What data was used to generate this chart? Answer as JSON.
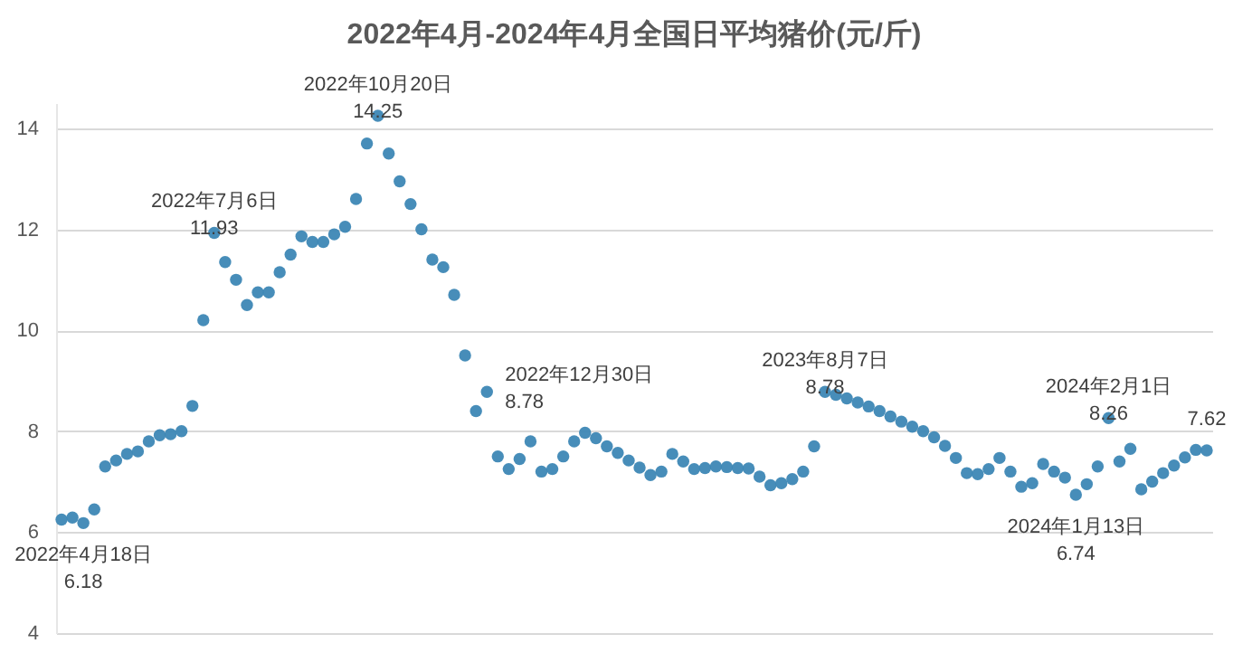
{
  "chart_data": {
    "type": "scatter",
    "title": "2022年4月-2024年4月全国日平均猪价(元/斤)",
    "categories": [
      null,
      null,
      null,
      null,
      null,
      null,
      null,
      null,
      null,
      null,
      null,
      null,
      null,
      null,
      null,
      null,
      null,
      null,
      null,
      null,
      null,
      null,
      null,
      null,
      null,
      null,
      null,
      null,
      null,
      null,
      null,
      null,
      null,
      null,
      null,
      null,
      null,
      null,
      null,
      null,
      null,
      null,
      null,
      null,
      null,
      null,
      null,
      null,
      null,
      null,
      null,
      null,
      null,
      null,
      null,
      null,
      null,
      null,
      null,
      null,
      null,
      null,
      null,
      null,
      null,
      null,
      null,
      null,
      null,
      null,
      null,
      null,
      null,
      null,
      null,
      null,
      null,
      null,
      null,
      null,
      null,
      null,
      null,
      null,
      null,
      null,
      null,
      null,
      null,
      null,
      null,
      null,
      null,
      null,
      null,
      null,
      null,
      null,
      null,
      null,
      null,
      null,
      null,
      null,
      null,
      null
    ],
    "series": [
      {
        "color": "#3d87b5",
        "values": [
          6.25,
          6.29,
          6.18,
          6.45,
          7.3,
          7.42,
          7.55,
          7.6,
          7.8,
          7.92,
          7.94,
          8.0,
          8.5,
          10.2,
          11.93,
          11.35,
          11.0,
          10.5,
          10.75,
          10.75,
          11.15,
          11.5,
          11.86,
          11.75,
          11.75,
          11.9,
          12.05,
          12.6,
          13.7,
          14.25,
          13.5,
          12.95,
          12.5,
          12.0,
          11.4,
          11.25,
          10.7,
          9.5,
          8.4,
          8.78,
          7.5,
          7.25,
          7.45,
          7.8,
          7.2,
          7.25,
          7.5,
          7.8,
          7.97,
          7.86,
          7.7,
          7.57,
          7.42,
          7.28,
          7.13,
          7.2,
          7.55,
          7.4,
          7.25,
          7.27,
          7.3,
          7.29,
          7.27,
          7.26,
          7.1,
          6.93,
          6.97,
          7.05,
          7.2,
          7.7,
          8.78,
          8.72,
          8.65,
          8.57,
          8.49,
          8.4,
          8.29,
          8.19,
          8.09,
          8.0,
          7.88,
          7.71,
          7.47,
          7.17,
          7.15,
          7.25,
          7.47,
          7.2,
          6.9,
          6.97,
          7.35,
          7.2,
          7.08,
          6.74,
          6.95,
          7.3,
          8.26,
          7.4,
          7.65,
          6.85,
          7.0,
          7.17,
          7.32,
          7.48,
          7.63,
          7.62
        ],
        "value_labels": [
          null,
          null,
          "2022年4月18日\n6.18",
          null,
          null,
          null,
          null,
          null,
          null,
          null,
          null,
          null,
          null,
          null,
          "2022年7月6日\n11.93",
          null,
          null,
          null,
          null,
          null,
          null,
          null,
          null,
          null,
          null,
          null,
          null,
          null,
          null,
          "2022年10月20日\n14.25",
          null,
          null,
          null,
          null,
          null,
          null,
          null,
          null,
          null,
          "2022年12月30日\n8.78",
          null,
          null,
          null,
          null,
          null,
          null,
          null,
          null,
          null,
          null,
          null,
          null,
          null,
          null,
          null,
          null,
          null,
          null,
          null,
          null,
          null,
          null,
          null,
          null,
          null,
          null,
          null,
          null,
          null,
          null,
          "2023年8月7日\n8.78",
          null,
          null,
          null,
          null,
          null,
          null,
          null,
          null,
          null,
          null,
          null,
          null,
          null,
          null,
          null,
          null,
          null,
          null,
          null,
          null,
          null,
          null,
          "2024年1月13日\n6.74",
          null,
          null,
          "2024年2月1日\n8.26",
          null,
          null,
          null,
          null,
          null,
          null,
          null,
          null,
          "7.62"
        ]
      }
    ],
    "ylim": [
      4,
      14.5
    ],
    "yticks": [
      4,
      6,
      8,
      10,
      12,
      14
    ],
    "grid": "y",
    "tick_labels": "y",
    "marker": "circle"
  }
}
